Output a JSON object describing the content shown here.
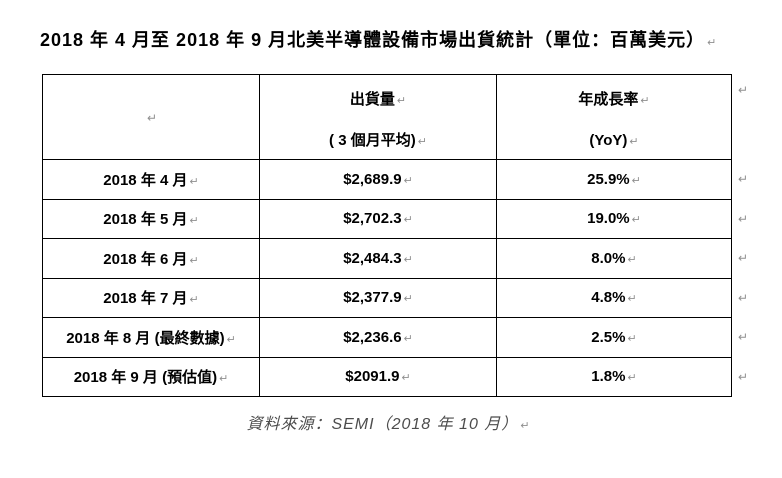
{
  "marks": {
    "paragraph": "↵"
  },
  "title": {
    "text": "2018 年 4 月至 2018 年 9 月北美半導體設備市場出貨統計（單位：百萬美元）"
  },
  "table": {
    "header": {
      "col1": "",
      "col2_line1": "出貨量",
      "col2_line2": "( 3 個月平均)",
      "col3_line1": "年成長率",
      "col3_line2": "(YoY)"
    },
    "rows": [
      {
        "label": "2018 年 4 月",
        "shipment": "$2,689.9",
        "yoy": "25.9%"
      },
      {
        "label": "2018 年 5 月",
        "shipment": "$2,702.3",
        "yoy": "19.0%"
      },
      {
        "label": "2018 年 6 月",
        "shipment": "$2,484.3",
        "yoy": "8.0%"
      },
      {
        "label": "2018 年 7 月",
        "shipment": "$2,377.9",
        "yoy": "4.8%"
      },
      {
        "label": "2018 年 8 月 (最終數據)",
        "shipment": "$2,236.6",
        "yoy": "2.5%"
      },
      {
        "label": "2018 年 9 月 (預估值)",
        "shipment": "$2091.9",
        "yoy": "1.8%"
      }
    ]
  },
  "footer": {
    "text": "資料來源：SEMI（2018 年 10 月）"
  },
  "colors": {
    "text": "#000000",
    "border": "#000000",
    "paragraph_mark": "#8f8f8f",
    "footer_text": "#4d4d4d",
    "background": "#ffffff"
  }
}
